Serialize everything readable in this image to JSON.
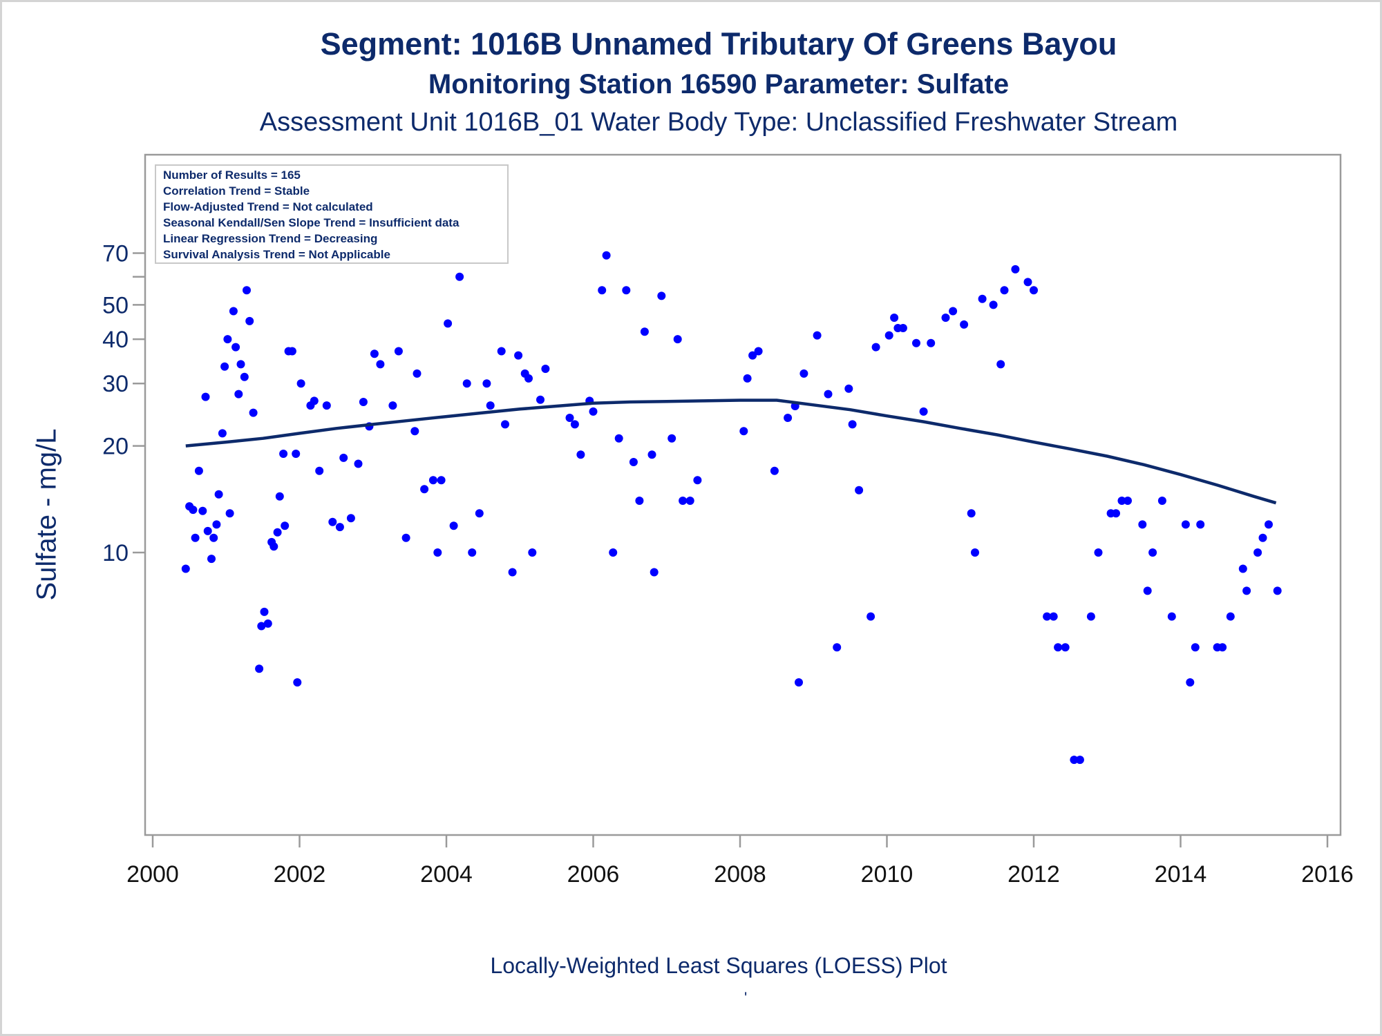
{
  "chart_data": {
    "type": "scatter",
    "title": "Segment: 1016B  Unnamed Tributary Of Greens Bayou",
    "subtitle": "Monitoring Station 16590 Parameter: Sulfate",
    "subtitle2": "Assessment Unit 1016B_01   Water Body Type: Unclassified Freshwater Stream",
    "ylabel": "Sulfate - mg/L",
    "xlabel": "",
    "footnote": "Locally-Weighted Least Squares (LOESS) Plot",
    "footnote_mark": "'",
    "y_scale": "log",
    "xlim": [
      2000,
      2016
    ],
    "ylim": [
      3,
      72
    ],
    "x_ticks": [
      2000,
      2002,
      2004,
      2006,
      2008,
      2010,
      2012,
      2014,
      2016
    ],
    "y_ticks": [
      10,
      20,
      30,
      40,
      50,
      70
    ],
    "y_minor_ticks": [
      60
    ],
    "grid": false,
    "legend_placement": "top-left",
    "stats_box": [
      "Number of Results = 165",
      "Correlation Trend = Stable",
      "Flow-Adjusted Trend = Not calculated",
      "Seasonal Kendall/Sen Slope Trend = Insufficient data",
      "Linear Regression Trend = Decreasing",
      "Survival Analysis Trend = Not Applicable"
    ],
    "colors": {
      "points": "#0000ff",
      "loess": "#0d2a6b",
      "text": "#0d2a6b",
      "axis": "#9a9a9a"
    },
    "points": [
      [
        2000.45,
        9
      ],
      [
        2000.5,
        13.5
      ],
      [
        2000.55,
        13.2
      ],
      [
        2000.58,
        11
      ],
      [
        2000.63,
        17
      ],
      [
        2000.68,
        13.1
      ],
      [
        2000.72,
        27.5
      ],
      [
        2000.75,
        11.5
      ],
      [
        2000.8,
        9.6
      ],
      [
        2000.83,
        11
      ],
      [
        2000.87,
        12
      ],
      [
        2000.9,
        14.6
      ],
      [
        2000.95,
        21.7
      ],
      [
        2000.98,
        33.5
      ],
      [
        2001.02,
        40
      ],
      [
        2001.05,
        12.9
      ],
      [
        2001.1,
        48
      ],
      [
        2001.13,
        38
      ],
      [
        2001.17,
        28
      ],
      [
        2001.2,
        34
      ],
      [
        2001.25,
        31.3
      ],
      [
        2001.28,
        55
      ],
      [
        2001.32,
        45
      ],
      [
        2001.37,
        24.8
      ],
      [
        2001.45,
        4.7
      ],
      [
        2001.48,
        6.2
      ],
      [
        2001.52,
        6.8
      ],
      [
        2001.57,
        6.3
      ],
      [
        2001.62,
        10.7
      ],
      [
        2001.65,
        10.4
      ],
      [
        2001.7,
        11.4
      ],
      [
        2001.73,
        14.4
      ],
      [
        2001.78,
        19
      ],
      [
        2001.8,
        11.9
      ],
      [
        2001.85,
        37
      ],
      [
        2001.9,
        37
      ],
      [
        2001.95,
        19
      ],
      [
        2001.97,
        4.3
      ],
      [
        2002.02,
        30
      ],
      [
        2002.15,
        26
      ],
      [
        2002.2,
        26.8
      ],
      [
        2002.27,
        17
      ],
      [
        2002.37,
        26
      ],
      [
        2002.45,
        12.2
      ],
      [
        2002.55,
        11.8
      ],
      [
        2002.6,
        18.5
      ],
      [
        2002.7,
        12.5
      ],
      [
        2002.8,
        17.8
      ],
      [
        2002.87,
        26.6
      ],
      [
        2002.95,
        22.7
      ],
      [
        2003.02,
        36.4
      ],
      [
        2003.1,
        34
      ],
      [
        2003.27,
        26
      ],
      [
        2003.35,
        37
      ],
      [
        2003.45,
        11
      ],
      [
        2003.57,
        22
      ],
      [
        2003.6,
        32
      ],
      [
        2003.7,
        15.1
      ],
      [
        2003.82,
        16
      ],
      [
        2003.88,
        10
      ],
      [
        2003.93,
        16
      ],
      [
        2004.02,
        44.3
      ],
      [
        2004.1,
        11.9
      ],
      [
        2004.18,
        60
      ],
      [
        2004.28,
        30
      ],
      [
        2004.35,
        10
      ],
      [
        2004.45,
        12.9
      ],
      [
        2004.55,
        30
      ],
      [
        2004.6,
        26
      ],
      [
        2004.75,
        37
      ],
      [
        2004.8,
        23
      ],
      [
        2004.9,
        8.8
      ],
      [
        2004.98,
        36
      ],
      [
        2005.07,
        32
      ],
      [
        2005.12,
        31
      ],
      [
        2005.17,
        10
      ],
      [
        2005.28,
        27
      ],
      [
        2005.35,
        33
      ],
      [
        2005.68,
        24
      ],
      [
        2005.75,
        23
      ],
      [
        2005.83,
        18.9
      ],
      [
        2005.95,
        26.8
      ],
      [
        2006.0,
        25
      ],
      [
        2006.12,
        55
      ],
      [
        2006.18,
        69
      ],
      [
        2006.27,
        10
      ],
      [
        2006.35,
        21
      ],
      [
        2006.45,
        55
      ],
      [
        2006.55,
        18
      ],
      [
        2006.63,
        14
      ],
      [
        2006.7,
        42
      ],
      [
        2006.8,
        18.9
      ],
      [
        2006.83,
        8.8
      ],
      [
        2006.93,
        53
      ],
      [
        2007.07,
        21
      ],
      [
        2007.15,
        40
      ],
      [
        2007.22,
        14
      ],
      [
        2007.32,
        14
      ],
      [
        2007.42,
        16
      ],
      [
        2008.05,
        22
      ],
      [
        2008.1,
        31
      ],
      [
        2008.17,
        36
      ],
      [
        2008.25,
        37
      ],
      [
        2008.47,
        17
      ],
      [
        2008.65,
        24
      ],
      [
        2008.75,
        25.9
      ],
      [
        2008.8,
        4.3
      ],
      [
        2008.87,
        32
      ],
      [
        2009.05,
        41
      ],
      [
        2009.2,
        28
      ],
      [
        2009.32,
        5.4
      ],
      [
        2009.48,
        29
      ],
      [
        2009.53,
        23
      ],
      [
        2009.62,
        15
      ],
      [
        2009.78,
        6.6
      ],
      [
        2009.85,
        38
      ],
      [
        2010.03,
        41
      ],
      [
        2010.1,
        46
      ],
      [
        2010.15,
        43
      ],
      [
        2010.22,
        43
      ],
      [
        2010.4,
        39
      ],
      [
        2010.5,
        25
      ],
      [
        2010.6,
        39
      ],
      [
        2010.8,
        46
      ],
      [
        2010.9,
        48
      ],
      [
        2011.05,
        44
      ],
      [
        2011.15,
        12.9
      ],
      [
        2011.2,
        10
      ],
      [
        2011.3,
        52
      ],
      [
        2011.45,
        50
      ],
      [
        2011.55,
        34
      ],
      [
        2011.6,
        55
      ],
      [
        2011.75,
        63
      ],
      [
        2011.92,
        58
      ],
      [
        2012.0,
        55
      ],
      [
        2012.18,
        6.6
      ],
      [
        2012.27,
        6.6
      ],
      [
        2012.33,
        5.4
      ],
      [
        2012.43,
        5.4
      ],
      [
        2012.55,
        2.6
      ],
      [
        2012.63,
        2.6
      ],
      [
        2012.78,
        6.6
      ],
      [
        2012.88,
        10
      ],
      [
        2013.05,
        12.9
      ],
      [
        2013.12,
        12.9
      ],
      [
        2013.2,
        14
      ],
      [
        2013.28,
        14
      ],
      [
        2013.48,
        12
      ],
      [
        2013.55,
        7.8
      ],
      [
        2013.62,
        10
      ],
      [
        2013.75,
        14
      ],
      [
        2013.88,
        6.6
      ],
      [
        2014.07,
        12
      ],
      [
        2014.13,
        4.3
      ],
      [
        2014.2,
        5.4
      ],
      [
        2014.27,
        12
      ],
      [
        2014.5,
        5.4
      ],
      [
        2014.57,
        5.4
      ],
      [
        2014.68,
        6.6
      ],
      [
        2014.85,
        9
      ],
      [
        2014.9,
        7.8
      ],
      [
        2015.05,
        10
      ],
      [
        2015.12,
        11
      ],
      [
        2015.2,
        12
      ],
      [
        2015.32,
        7.8
      ]
    ],
    "loess": [
      [
        2000.45,
        20.0
      ],
      [
        2001.0,
        20.5
      ],
      [
        2001.5,
        21.0
      ],
      [
        2002.0,
        21.7
      ],
      [
        2002.5,
        22.4
      ],
      [
        2003.0,
        23.0
      ],
      [
        2003.5,
        23.6
      ],
      [
        2004.0,
        24.2
      ],
      [
        2004.5,
        24.8
      ],
      [
        2005.0,
        25.4
      ],
      [
        2005.5,
        25.9
      ],
      [
        2006.0,
        26.4
      ],
      [
        2006.5,
        26.6
      ],
      [
        2007.0,
        26.7
      ],
      [
        2007.5,
        26.8
      ],
      [
        2008.0,
        26.9
      ],
      [
        2008.5,
        26.9
      ],
      [
        2009.0,
        26.1
      ],
      [
        2009.5,
        25.3
      ],
      [
        2010.0,
        24.3
      ],
      [
        2010.5,
        23.4
      ],
      [
        2011.0,
        22.4
      ],
      [
        2011.5,
        21.5
      ],
      [
        2012.0,
        20.5
      ],
      [
        2012.5,
        19.6
      ],
      [
        2013.0,
        18.7
      ],
      [
        2013.5,
        17.7
      ],
      [
        2014.0,
        16.6
      ],
      [
        2014.5,
        15.5
      ],
      [
        2015.0,
        14.4
      ],
      [
        2015.3,
        13.8
      ]
    ]
  }
}
